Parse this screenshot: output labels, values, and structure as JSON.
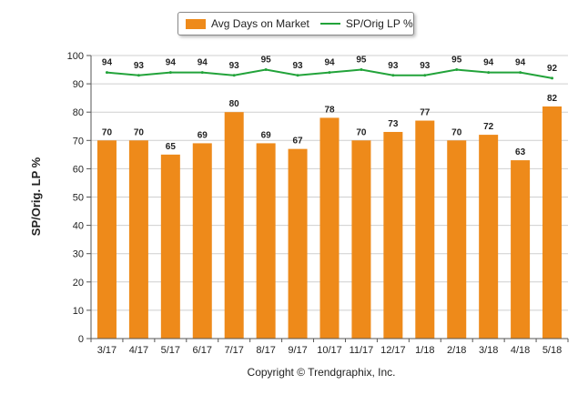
{
  "legend": {
    "bar_label": "Avg Days on Market",
    "line_label": "SP/Orig LP %"
  },
  "footer": {
    "copyright": "Copyright © Trendgraphix, Inc."
  },
  "colors": {
    "bar": "#EE8A1A",
    "line": "#22A33A",
    "grid": "#cfcfcf",
    "axis": "#555555"
  },
  "chart_data": {
    "type": "bar",
    "ylabel": "SP/Orig. LP %",
    "xlabel": "",
    "ylim": [
      0,
      100
    ],
    "yticks": [
      0,
      10,
      20,
      30,
      40,
      50,
      60,
      70,
      80,
      90,
      100
    ],
    "grid": true,
    "legend_position": "top-center",
    "categories": [
      "3/17",
      "4/17",
      "5/17",
      "6/17",
      "7/17",
      "8/17",
      "9/17",
      "10/17",
      "11/17",
      "12/17",
      "1/18",
      "2/18",
      "3/18",
      "4/18",
      "5/18"
    ],
    "series": [
      {
        "name": "Avg Days on Market",
        "type": "bar",
        "values": [
          70,
          70,
          65,
          69,
          80,
          69,
          67,
          78,
          70,
          73,
          77,
          70,
          72,
          63,
          82
        ]
      },
      {
        "name": "SP/Orig LP %",
        "type": "line",
        "values": [
          94,
          93,
          94,
          94,
          93,
          95,
          93,
          94,
          95,
          93,
          93,
          95,
          94,
          94,
          92
        ]
      }
    ]
  }
}
